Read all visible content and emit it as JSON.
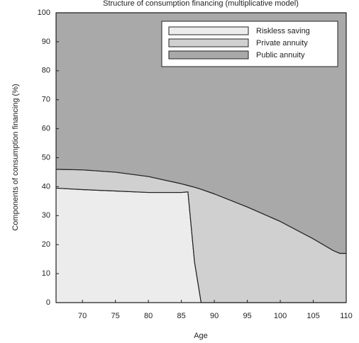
{
  "chart_data": {
    "type": "area",
    "title": "Structure of consumption financing (multiplicative model)",
    "xlabel": "Age",
    "ylabel": "Components of consumption financing (%)",
    "stacked": true,
    "x": [
      66,
      70,
      75,
      80,
      85,
      86,
      87,
      88,
      90,
      95,
      100,
      105,
      108,
      109,
      110
    ],
    "series": [
      {
        "name": "Riskless saving",
        "color": "#ececec",
        "values": [
          39.5,
          39,
          38.5,
          38,
          38,
          38.2,
          14,
          0,
          0,
          0,
          0,
          0,
          0,
          0,
          0
        ]
      },
      {
        "name": "Private annuity",
        "color": "#d0d0d0",
        "values": [
          6.5,
          6.8,
          6.5,
          5.5,
          3,
          2.2,
          25.8,
          39.1,
          37.5,
          33,
          28,
          22,
          18,
          17,
          17
        ]
      },
      {
        "name": "Public annuity",
        "color": "#a9a9a9",
        "values": [
          54,
          54.2,
          55,
          56.5,
          59,
          59.6,
          60.2,
          60.9,
          62.5,
          67,
          72,
          78,
          82,
          83,
          83
        ]
      }
    ],
    "xlim": [
      66,
      110
    ],
    "xticks": [
      70,
      75,
      80,
      85,
      90,
      95,
      100,
      105,
      110
    ],
    "ylim": [
      0,
      100
    ],
    "yticks": [
      0,
      10,
      20,
      30,
      40,
      50,
      60,
      70,
      80,
      90,
      100
    ],
    "legend": "upper right"
  }
}
